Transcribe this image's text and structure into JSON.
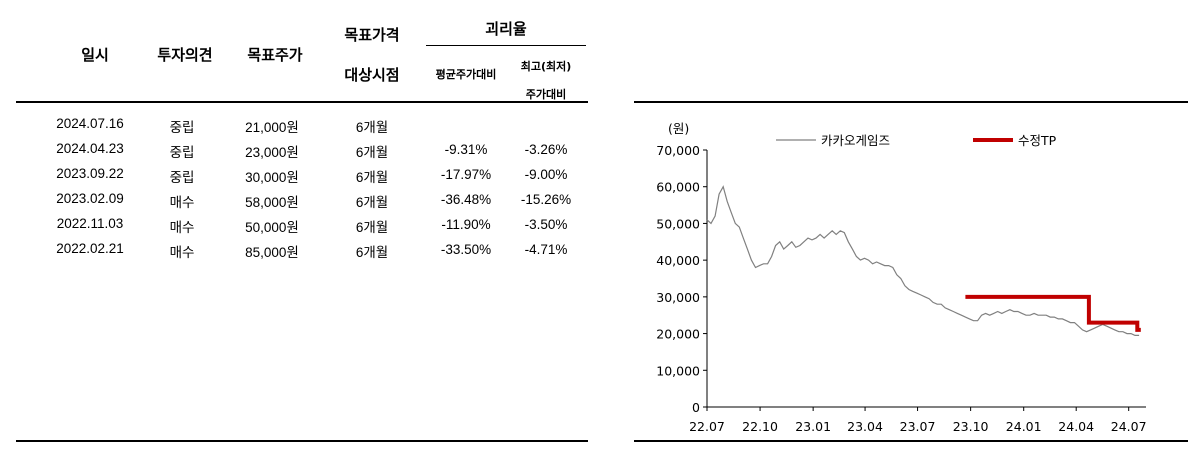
{
  "table": {
    "headers": {
      "date": "일시",
      "opinion": "투자의견",
      "target": "목표주가",
      "horizon_top": "목표가격",
      "horizon_bottom": "대상시점",
      "gap": "괴리율",
      "gap_avg": "평균주가대비",
      "gap_max_top": "최고(최저)",
      "gap_max_bottom": "주가대비"
    },
    "rows": [
      {
        "date": "2024.07.16",
        "opinion": "중립",
        "target": "21,000원",
        "horizon": "6개월",
        "avg": "",
        "max": ""
      },
      {
        "date": "2024.04.23",
        "opinion": "중립",
        "target": "23,000원",
        "horizon": "6개월",
        "avg": "-9.31%",
        "max": "-3.26%"
      },
      {
        "date": "2023.09.22",
        "opinion": "중립",
        "target": "30,000원",
        "horizon": "6개월",
        "avg": "-17.97%",
        "max": "-9.00%"
      },
      {
        "date": "2023.02.09",
        "opinion": "매수",
        "target": "58,000원",
        "horizon": "6개월",
        "avg": "-36.48%",
        "max": "-15.26%"
      },
      {
        "date": "2022.11.03",
        "opinion": "매수",
        "target": "50,000원",
        "horizon": "6개월",
        "avg": "-11.90%",
        "max": "-3.50%"
      },
      {
        "date": "2022.02.21",
        "opinion": "매수",
        "target": "85,000원",
        "horizon": "6개월",
        "avg": "-33.50%",
        "max": "-4.71%"
      }
    ]
  },
  "chart_data": {
    "type": "line",
    "unit_label": "(원)",
    "ylim": [
      0,
      70000
    ],
    "yticks": [
      0,
      10000,
      20000,
      30000,
      40000,
      50000,
      60000,
      70000
    ],
    "ytick_labels": [
      "0",
      "10,000",
      "20,000",
      "30,000",
      "40,000",
      "50,000",
      "60,000",
      "70,000"
    ],
    "xlim": [
      "2022-07-01",
      "2024-07-31"
    ],
    "xticks": [
      "2022-07-01",
      "2022-10-01",
      "2023-01-01",
      "2023-04-01",
      "2023-07-01",
      "2023-10-01",
      "2024-01-01",
      "2024-04-01",
      "2024-07-01"
    ],
    "xtick_labels": [
      "22.07",
      "22.10",
      "23.01",
      "23.04",
      "23.07",
      "23.10",
      "24.01",
      "24.04",
      "24.07"
    ],
    "legend_position": "top",
    "series": [
      {
        "name": "카카오게임즈",
        "color": "#808080",
        "x": [
          "2022-07-01",
          "2022-07-08",
          "2022-07-15",
          "2022-07-22",
          "2022-07-29",
          "2022-08-05",
          "2022-08-12",
          "2022-08-19",
          "2022-08-26",
          "2022-09-02",
          "2022-09-09",
          "2022-09-16",
          "2022-09-23",
          "2022-09-30",
          "2022-10-07",
          "2022-10-14",
          "2022-10-21",
          "2022-10-28",
          "2022-11-04",
          "2022-11-11",
          "2022-11-18",
          "2022-11-25",
          "2022-12-02",
          "2022-12-09",
          "2022-12-16",
          "2022-12-23",
          "2022-12-30",
          "2023-01-06",
          "2023-01-13",
          "2023-01-20",
          "2023-01-27",
          "2023-02-03",
          "2023-02-10",
          "2023-02-17",
          "2023-02-24",
          "2023-03-03",
          "2023-03-10",
          "2023-03-17",
          "2023-03-24",
          "2023-03-31",
          "2023-04-07",
          "2023-04-14",
          "2023-04-21",
          "2023-04-28",
          "2023-05-05",
          "2023-05-12",
          "2023-05-19",
          "2023-05-26",
          "2023-06-02",
          "2023-06-09",
          "2023-06-16",
          "2023-06-23",
          "2023-06-30",
          "2023-07-07",
          "2023-07-14",
          "2023-07-21",
          "2023-07-28",
          "2023-08-04",
          "2023-08-11",
          "2023-08-18",
          "2023-08-25",
          "2023-09-01",
          "2023-09-08",
          "2023-09-15",
          "2023-09-22",
          "2023-09-29",
          "2023-10-06",
          "2023-10-13",
          "2023-10-20",
          "2023-10-27",
          "2023-11-03",
          "2023-11-10",
          "2023-11-17",
          "2023-11-24",
          "2023-12-01",
          "2023-12-08",
          "2023-12-15",
          "2023-12-22",
          "2023-12-29",
          "2024-01-05",
          "2024-01-12",
          "2024-01-19",
          "2024-01-26",
          "2024-02-02",
          "2024-02-09",
          "2024-02-16",
          "2024-02-23",
          "2024-03-01",
          "2024-03-08",
          "2024-03-15",
          "2024-03-22",
          "2024-03-29",
          "2024-04-05",
          "2024-04-12",
          "2024-04-19",
          "2024-04-26",
          "2024-05-03",
          "2024-05-10",
          "2024-05-17",
          "2024-05-24",
          "2024-05-31",
          "2024-06-07",
          "2024-06-14",
          "2024-06-21",
          "2024-06-28",
          "2024-07-05",
          "2024-07-12",
          "2024-07-19"
        ],
        "y": [
          51000,
          50000,
          52000,
          58000,
          60000,
          56000,
          53000,
          50000,
          49000,
          46000,
          43000,
          40000,
          38000,
          38500,
          39000,
          39000,
          41000,
          44000,
          45000,
          43000,
          44000,
          45000,
          43500,
          44000,
          45000,
          46000,
          45500,
          46000,
          47000,
          46000,
          47000,
          48000,
          47000,
          48000,
          47500,
          45000,
          43000,
          41000,
          40000,
          40500,
          40000,
          39000,
          39500,
          39000,
          38500,
          38500,
          38000,
          36000,
          35000,
          33000,
          32000,
          31500,
          31000,
          30500,
          30000,
          29500,
          28500,
          28000,
          28000,
          27000,
          26500,
          26000,
          25500,
          25000,
          24500,
          24000,
          23500,
          23500,
          25000,
          25500,
          25000,
          25500,
          26000,
          25500,
          26000,
          26500,
          26000,
          26000,
          25500,
          25000,
          25000,
          25500,
          25000,
          25000,
          25000,
          24500,
          24500,
          24000,
          24000,
          23500,
          23000,
          23000,
          22000,
          21000,
          20500,
          21000,
          21500,
          22000,
          22500,
          22000,
          21500,
          21000,
          20500,
          20500,
          20000,
          20000,
          19500,
          19500
        ]
      },
      {
        "name": "수정TP",
        "color": "#c00000",
        "x": [
          "2023-09-22",
          "2024-04-23",
          "2024-04-23",
          "2024-07-16",
          "2024-07-16",
          "2024-07-22"
        ],
        "y": [
          30000,
          30000,
          23000,
          23000,
          21000,
          21000
        ]
      }
    ]
  }
}
